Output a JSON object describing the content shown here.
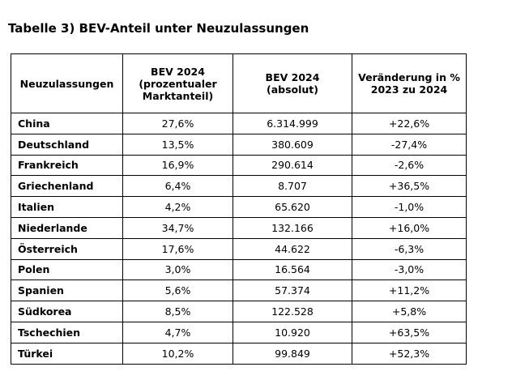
{
  "title": "Tabelle 3) BEV-Anteil unter Neuzulassungen",
  "table": {
    "headers": [
      [
        "Neuzulassungen"
      ],
      [
        "BEV 2024",
        "(prozentualer",
        "Marktanteil)"
      ],
      [
        "BEV 2024",
        "(absolut)"
      ],
      [
        "Veränderung in %",
        "2023 zu 2024"
      ]
    ],
    "rows": [
      [
        "China",
        "27,6%",
        "6.314.999",
        "+22,6%"
      ],
      [
        "Deutschland",
        "13,5%",
        "380.609",
        "-27,4%"
      ],
      [
        "Frankreich",
        "16,9%",
        "290.614",
        "-2,6%"
      ],
      [
        "Griechenland",
        "6,4%",
        "8.707",
        "+36,5%"
      ],
      [
        "Italien",
        "4,2%",
        "65.620",
        "-1,0%"
      ],
      [
        "Niederlande",
        "34,7%",
        "132.166",
        "+16,0%"
      ],
      [
        "Österreich",
        "17,6%",
        "44.622",
        "-6,3%"
      ],
      [
        "Polen",
        "3,0%",
        "16.564",
        "-3,0%"
      ],
      [
        "Spanien",
        "5,6%",
        "57.374",
        "+11,2%"
      ],
      [
        "Südkorea",
        "8,5%",
        "122.528",
        "+5,8%"
      ],
      [
        "Tschechien",
        "4,7%",
        "10.920",
        "+63,5%"
      ],
      [
        "Türkei",
        "10,2%",
        "99.849",
        "+52,3%"
      ]
    ]
  }
}
